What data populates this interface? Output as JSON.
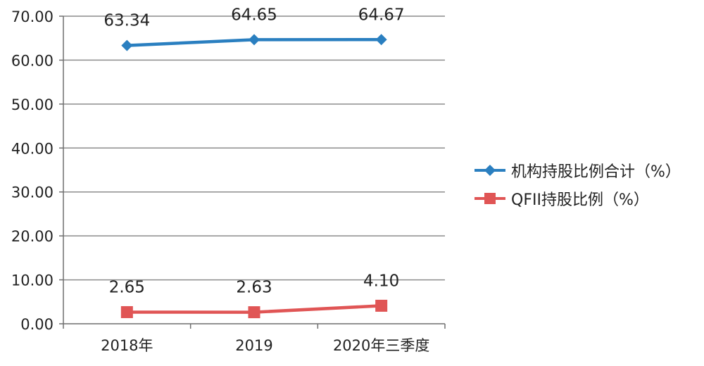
{
  "chart_data": {
    "type": "line",
    "title": "",
    "xlabel": "",
    "ylabel": "",
    "categories": [
      "2018年",
      "2019",
      "2020年三季度"
    ],
    "ylim": [
      0,
      70
    ],
    "yticks": [
      "0.00",
      "10.00",
      "20.00",
      "30.00",
      "40.00",
      "50.00",
      "60.00",
      "70.00"
    ],
    "grid": true,
    "legend_position": "right",
    "series": [
      {
        "name": "机构持股比例合计（%）",
        "values": [
          63.34,
          64.65,
          64.67
        ],
        "labels": [
          "63.34",
          "64.65",
          "64.67"
        ],
        "color": "#2a7fc0",
        "marker": "diamond"
      },
      {
        "name": "QFII持股比例（%）",
        "values": [
          2.65,
          2.63,
          4.1
        ],
        "labels": [
          "2.65",
          "2.63",
          "4.10"
        ],
        "color": "#e05555",
        "marker": "square"
      }
    ]
  }
}
